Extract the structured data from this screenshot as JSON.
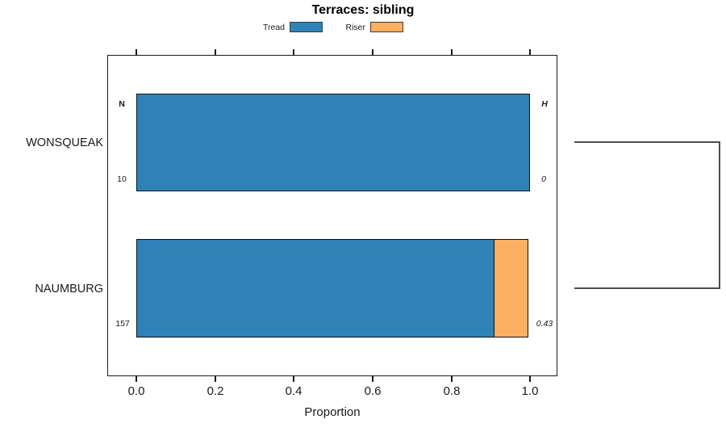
{
  "chart_data": {
    "type": "bar",
    "orientation": "horizontal",
    "stacked": true,
    "title": "Terraces: sibling",
    "xlabel": "Proportion",
    "xlim": [
      0,
      1
    ],
    "x_ticks": [
      "0.0",
      "0.2",
      "0.4",
      "0.6",
      "0.8",
      "1.0"
    ],
    "x_tick_values": [
      0,
      0.2,
      0.4,
      0.6,
      0.8,
      1.0
    ],
    "categories": [
      "WONSQUEAK",
      "NAUMBURG"
    ],
    "series": [
      {
        "name": "Tread",
        "color": "#2e82b8",
        "values": [
          1.0,
          0.91
        ]
      },
      {
        "name": "Riser",
        "color": "#fbaf61",
        "values": [
          0,
          0.09
        ]
      }
    ],
    "columns": {
      "n_header": "N",
      "h_header": "H"
    },
    "rows": [
      {
        "category": "WONSQUEAK",
        "n": "10",
        "h": "0"
      },
      {
        "category": "NAUMBURG",
        "n": "157",
        "h": "0.43"
      }
    ],
    "legend_position": "top",
    "grid": false,
    "right_annotation": "dendrogram bracket joining WONSQUEAK and NAUMBURG",
    "colors": {
      "bar_border": "#111111",
      "axis": "#1a1a1a",
      "dendrogram_line": "#4d4d4d"
    }
  }
}
